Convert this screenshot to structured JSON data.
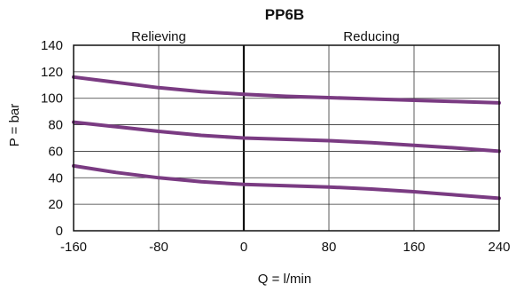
{
  "chart_data": {
    "type": "line",
    "title": "PP6B",
    "xlabel": "Q = l/min",
    "ylabel": "P = bar",
    "xlim": [
      -160,
      240
    ],
    "ylim": [
      0,
      140
    ],
    "x_ticks": [
      -160,
      -80,
      0,
      80,
      160,
      240
    ],
    "y_ticks": [
      0,
      20,
      40,
      60,
      80,
      100,
      120,
      140
    ],
    "grid": true,
    "region_labels": [
      {
        "text": "Relieving",
        "x_range": [
          -160,
          0
        ]
      },
      {
        "text": "Reducing",
        "x_range": [
          0,
          240
        ]
      }
    ],
    "line_color": "#7a3b82",
    "series": [
      {
        "x": [
          -160,
          -120,
          -80,
          -40,
          0,
          40,
          80,
          120,
          160,
          200,
          240
        ],
        "values": [
          116,
          112,
          108,
          105,
          103,
          101.5,
          100.5,
          99.5,
          98.5,
          97.5,
          96.5
        ]
      },
      {
        "x": [
          -160,
          -120,
          -80,
          -40,
          0,
          40,
          80,
          120,
          160,
          200,
          240
        ],
        "values": [
          82,
          78.5,
          75,
          72,
          70,
          69,
          68,
          66.5,
          64.5,
          62.5,
          60
        ]
      },
      {
        "x": [
          -160,
          -120,
          -80,
          -40,
          0,
          40,
          80,
          120,
          160,
          200,
          240
        ],
        "values": [
          49,
          44,
          40,
          37,
          35,
          34,
          33,
          31.5,
          29.5,
          27,
          24.5
        ]
      }
    ]
  }
}
